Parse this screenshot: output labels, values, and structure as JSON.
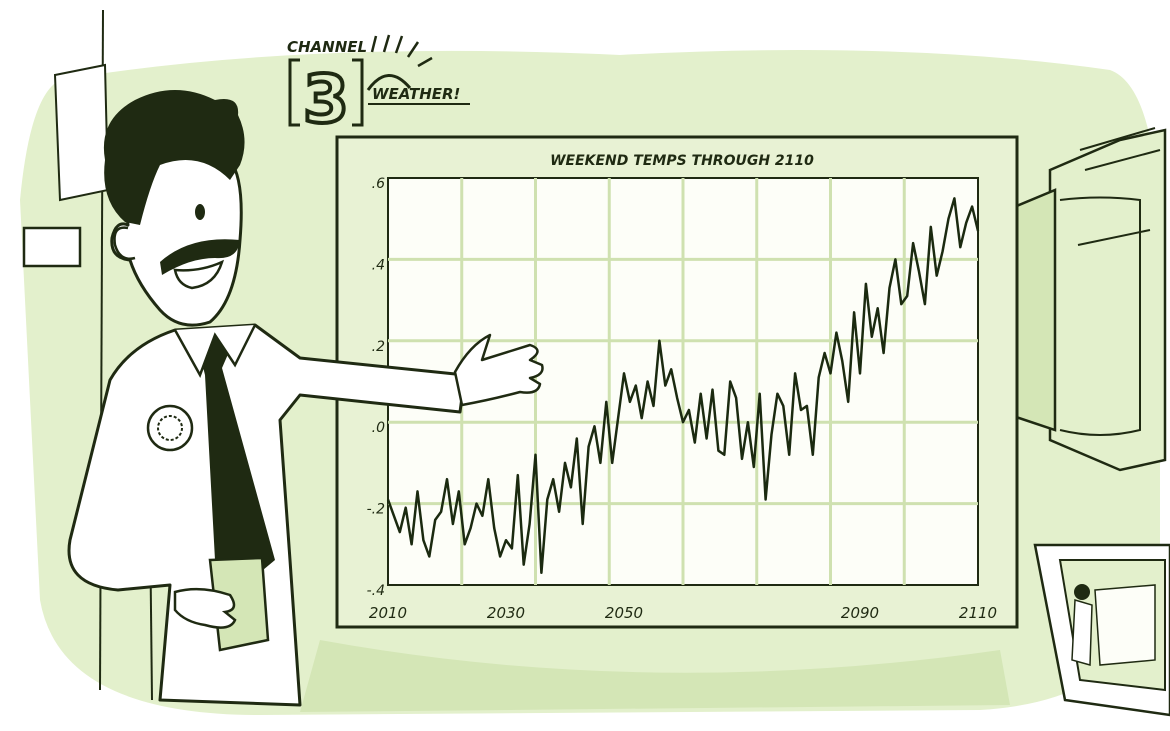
{
  "logo": {
    "channel_text": "CHANNEL",
    "number_text": "3",
    "weather_text": "WEATHER!"
  },
  "colors": {
    "background_tint": "#e3f0cc",
    "background_deep": "#cfe3ad",
    "board_fill": "#fdfef8",
    "grid": "#cfe1b0",
    "ink": "#1f2a12",
    "line": "#1b2a10"
  },
  "chart_data": {
    "type": "line",
    "title": "Weekend Temps through 2110",
    "title_display": "WEEKEND TEMPS THROUGH 2110",
    "xlabel": "",
    "ylabel": "",
    "xlim": [
      2010,
      2110
    ],
    "ylim": [
      -0.4,
      0.6
    ],
    "x_ticks": [
      "2010",
      "2030",
      "2050",
      "2090",
      "2110"
    ],
    "y_ticks": [
      ".6",
      ".4",
      ".2",
      ".0",
      "-.2",
      "-.4"
    ],
    "grid": true,
    "series": [
      {
        "x": [
          2010,
          2011,
          2012,
          2013,
          2014,
          2015,
          2016,
          2017,
          2018,
          2019,
          2020,
          2021,
          2022,
          2023,
          2024,
          2025,
          2026,
          2027,
          2028,
          2029,
          2030,
          2031,
          2032,
          2033,
          2034,
          2035,
          2036,
          2037,
          2038,
          2039,
          2040,
          2041,
          2042,
          2043,
          2044,
          2045,
          2046,
          2047,
          2048,
          2049,
          2050,
          2051,
          2052,
          2053,
          2054,
          2055,
          2056,
          2057,
          2058,
          2059,
          2060,
          2061,
          2062,
          2063,
          2064,
          2065,
          2066,
          2067,
          2068,
          2069,
          2070,
          2071,
          2072,
          2073,
          2074,
          2075,
          2076,
          2077,
          2078,
          2079,
          2080,
          2081,
          2082,
          2083,
          2084,
          2085,
          2086,
          2087,
          2088,
          2089,
          2090,
          2091,
          2092,
          2093,
          2094,
          2095,
          2096,
          2097,
          2098,
          2099,
          2100,
          2101,
          2102,
          2103,
          2104,
          2105,
          2106,
          2107,
          2108,
          2109,
          2110
        ],
        "values": [
          -0.19,
          -0.23,
          -0.27,
          -0.21,
          -0.3,
          -0.17,
          -0.29,
          -0.33,
          -0.24,
          -0.22,
          -0.14,
          -0.25,
          -0.17,
          -0.3,
          -0.26,
          -0.2,
          -0.23,
          -0.14,
          -0.26,
          -0.33,
          -0.29,
          -0.31,
          -0.13,
          -0.35,
          -0.25,
          -0.08,
          -0.37,
          -0.19,
          -0.14,
          -0.22,
          -0.1,
          -0.16,
          -0.04,
          -0.25,
          -0.06,
          -0.01,
          -0.1,
          0.05,
          -0.1,
          0.01,
          0.12,
          0.05,
          0.09,
          0.01,
          0.1,
          0.04,
          0.2,
          0.09,
          0.13,
          0.06,
          0.0,
          0.03,
          -0.05,
          0.07,
          -0.04,
          0.08,
          -0.07,
          -0.08,
          0.1,
          0.06,
          -0.09,
          0.0,
          -0.11,
          0.07,
          -0.19,
          -0.03,
          0.07,
          0.04,
          -0.08,
          0.12,
          0.03,
          0.04,
          -0.08,
          0.11,
          0.17,
          0.12,
          0.22,
          0.15,
          0.05,
          0.27,
          0.12,
          0.34,
          0.21,
          0.28,
          0.17,
          0.33,
          0.4,
          0.29,
          0.31,
          0.44,
          0.37,
          0.29,
          0.48,
          0.36,
          0.42,
          0.5,
          0.55,
          0.43,
          0.49,
          0.53,
          0.47
        ]
      }
    ]
  }
}
